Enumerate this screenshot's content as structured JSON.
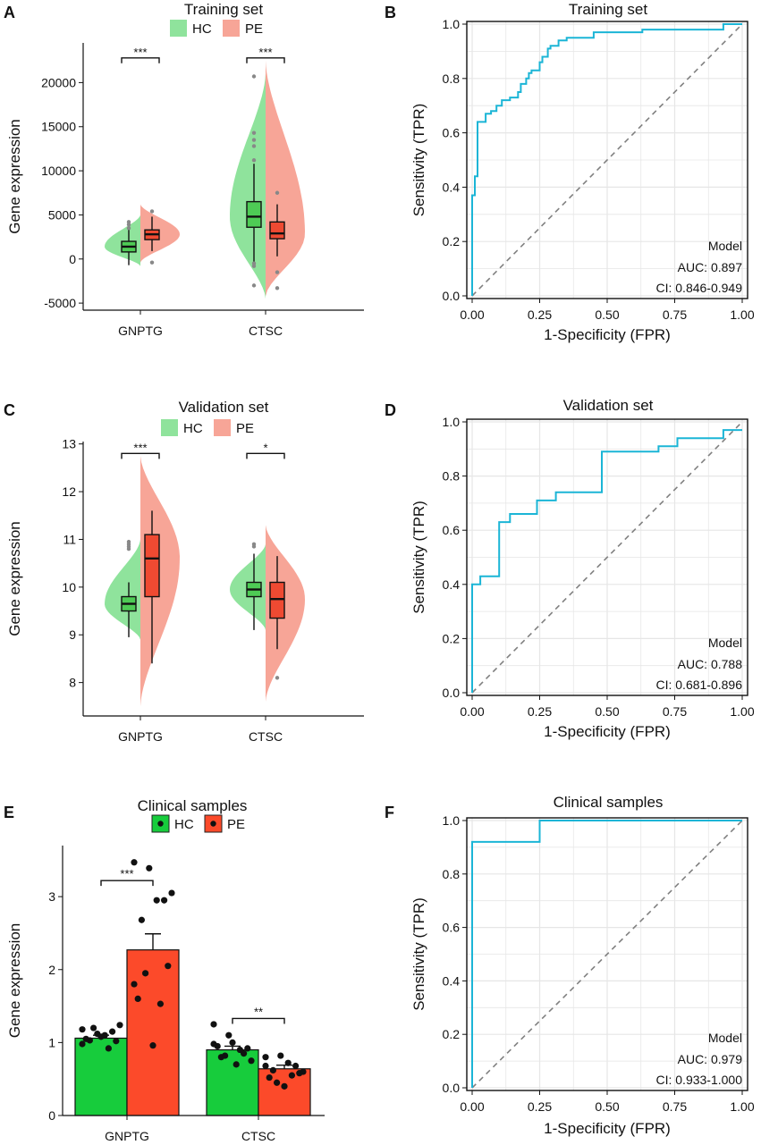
{
  "colors": {
    "hc_violin": "#8fe39c",
    "pe_violin": "#f7a597",
    "hc_box": "#4ecb55",
    "pe_box": "#ef4a32",
    "hc_bar": "#17cc3c",
    "pe_bar": "#fc4a2a",
    "roc": "#1bb5d6",
    "grid": "#e6e6e6",
    "diag": "#808080"
  },
  "chart_data": [
    {
      "panel": "A",
      "type": "violin",
      "title": "Training set",
      "ylabel": "Gene expression",
      "xlabel": "",
      "legend": [
        "HC",
        "PE"
      ],
      "ylim": [
        -5800,
        24500
      ],
      "yticks": [
        -5000,
        0,
        5000,
        10000,
        15000,
        20000
      ],
      "ytick_labels": [
        "-5000",
        "0",
        "5000",
        "10000",
        "15000",
        "20000"
      ],
      "categories": [
        "GNPTG",
        "CTSC"
      ],
      "groups": [
        {
          "category": "GNPTG",
          "significance": "***",
          "bracket_y": 22800,
          "hc": {
            "min": -700,
            "q1": 800,
            "median": 1400,
            "q3": 2000,
            "max": 3800,
            "vmin": -800,
            "vmax": 5000,
            "outliers": [
              3900,
              4200,
              3500
            ]
          },
          "pe": {
            "min": 900,
            "q1": 2200,
            "median": 2800,
            "q3": 3300,
            "max": 4800,
            "vmin": -400,
            "vmax": 6200,
            "outliers": [
              5400,
              -400
            ]
          }
        },
        {
          "category": "CTSC",
          "significance": "***",
          "bracket_y": 22800,
          "hc": {
            "min": -500,
            "q1": 3600,
            "median": 4800,
            "q3": 6500,
            "max": 10800,
            "vmin": -4500,
            "vmax": 21000,
            "outliers": [
              20700,
              14300,
              13500,
              12800,
              11200,
              -800,
              -3000,
              -500
            ]
          },
          "pe": {
            "min": 300,
            "q1": 2300,
            "median": 2900,
            "q3": 4200,
            "max": 6200,
            "vmin": -4200,
            "vmax": 22500,
            "outliers": [
              7500,
              -1500,
              -3300
            ]
          }
        }
      ]
    },
    {
      "panel": "B",
      "type": "roc",
      "title": "Training set",
      "xlabel": "1-Specificity (FPR)",
      "ylabel": "Sensitivity (TPR)",
      "xticks": [
        "0.00",
        "0.25",
        "0.50",
        "0.75",
        "1.00"
      ],
      "yticks": [
        "0.0",
        "0.2",
        "0.4",
        "0.6",
        "0.8",
        "1.0"
      ],
      "legend_title": "Model",
      "auc_text": "AUC: 0.897",
      "ci_text": "CI: 0.846-0.949",
      "points": [
        [
          0,
          0
        ],
        [
          0,
          0.37
        ],
        [
          0.01,
          0.37
        ],
        [
          0.01,
          0.44
        ],
        [
          0.02,
          0.44
        ],
        [
          0.02,
          0.64
        ],
        [
          0.05,
          0.64
        ],
        [
          0.05,
          0.67
        ],
        [
          0.07,
          0.67
        ],
        [
          0.07,
          0.68
        ],
        [
          0.09,
          0.68
        ],
        [
          0.09,
          0.7
        ],
        [
          0.11,
          0.7
        ],
        [
          0.11,
          0.72
        ],
        [
          0.14,
          0.72
        ],
        [
          0.14,
          0.73
        ],
        [
          0.17,
          0.73
        ],
        [
          0.17,
          0.75
        ],
        [
          0.18,
          0.75
        ],
        [
          0.18,
          0.78
        ],
        [
          0.2,
          0.78
        ],
        [
          0.2,
          0.8
        ],
        [
          0.21,
          0.8
        ],
        [
          0.21,
          0.82
        ],
        [
          0.22,
          0.82
        ],
        [
          0.22,
          0.83
        ],
        [
          0.25,
          0.83
        ],
        [
          0.25,
          0.86
        ],
        [
          0.26,
          0.86
        ],
        [
          0.26,
          0.88
        ],
        [
          0.28,
          0.88
        ],
        [
          0.28,
          0.91
        ],
        [
          0.29,
          0.91
        ],
        [
          0.29,
          0.92
        ],
        [
          0.32,
          0.92
        ],
        [
          0.32,
          0.94
        ],
        [
          0.35,
          0.94
        ],
        [
          0.35,
          0.95
        ],
        [
          0.45,
          0.95
        ],
        [
          0.45,
          0.97
        ],
        [
          0.63,
          0.97
        ],
        [
          0.63,
          0.98
        ],
        [
          0.93,
          0.98
        ],
        [
          0.93,
          1.0
        ],
        [
          1.0,
          1.0
        ]
      ]
    },
    {
      "panel": "C",
      "type": "violin",
      "title": "Validation set",
      "ylabel": "Gene expression",
      "xlabel": "",
      "legend": [
        "HC",
        "PE"
      ],
      "ylim": [
        7.3,
        13.05
      ],
      "yticks": [
        8,
        9,
        10,
        11,
        12,
        13
      ],
      "ytick_labels": [
        "8",
        "9",
        "10",
        "11",
        "12",
        "13"
      ],
      "categories": [
        "GNPTG",
        "CTSC"
      ],
      "groups": [
        {
          "category": "GNPTG",
          "significance": "***",
          "bracket_y": 12.8,
          "hc": {
            "min": 8.95,
            "q1": 9.5,
            "median": 9.65,
            "q3": 9.8,
            "max": 10.1,
            "vmin": 8.9,
            "vmax": 11.0,
            "outliers": [
              10.9,
              10.95,
              10.85,
              10.8
            ]
          },
          "pe": {
            "min": 8.4,
            "q1": 9.8,
            "median": 10.6,
            "q3": 11.1,
            "max": 11.6,
            "vmin": 7.5,
            "vmax": 12.75,
            "outliers": []
          }
        },
        {
          "category": "CTSC",
          "significance": "*",
          "bracket_y": 12.8,
          "hc": {
            "min": 9.1,
            "q1": 9.8,
            "median": 9.95,
            "q3": 10.1,
            "max": 10.7,
            "vmin": 9.1,
            "vmax": 10.9,
            "outliers": [
              10.85,
              10.9
            ]
          },
          "pe": {
            "min": 8.7,
            "q1": 9.35,
            "median": 9.75,
            "q3": 10.1,
            "max": 10.65,
            "vmin": 7.6,
            "vmax": 11.3,
            "outliers": [
              8.1
            ]
          }
        }
      ]
    },
    {
      "panel": "D",
      "type": "roc",
      "title": "Validation set",
      "xlabel": "1-Specificity (FPR)",
      "ylabel": "Sensitivity (TPR)",
      "xticks": [
        "0.00",
        "0.25",
        "0.50",
        "0.75",
        "1.00"
      ],
      "yticks": [
        "0.0",
        "0.2",
        "0.4",
        "0.6",
        "0.8",
        "1.0"
      ],
      "legend_title": "Model",
      "auc_text": "AUC: 0.788",
      "ci_text": "CI: 0.681-0.896",
      "points": [
        [
          0,
          0
        ],
        [
          0,
          0.4
        ],
        [
          0.03,
          0.4
        ],
        [
          0.03,
          0.43
        ],
        [
          0.1,
          0.43
        ],
        [
          0.1,
          0.63
        ],
        [
          0.14,
          0.63
        ],
        [
          0.14,
          0.66
        ],
        [
          0.24,
          0.66
        ],
        [
          0.24,
          0.71
        ],
        [
          0.31,
          0.71
        ],
        [
          0.31,
          0.74
        ],
        [
          0.48,
          0.74
        ],
        [
          0.48,
          0.89
        ],
        [
          0.69,
          0.89
        ],
        [
          0.69,
          0.91
        ],
        [
          0.76,
          0.91
        ],
        [
          0.76,
          0.94
        ],
        [
          0.93,
          0.94
        ],
        [
          0.93,
          0.97
        ],
        [
          1.0,
          0.97
        ]
      ]
    },
    {
      "panel": "E",
      "type": "bar",
      "title": "Clinical samples",
      "ylabel": "Gene expression",
      "xlabel": "",
      "legend": [
        "HC",
        "PE"
      ],
      "ylim": [
        0,
        3.7
      ],
      "yticks": [
        0,
        1,
        2,
        3
      ],
      "ytick_labels": [
        "0",
        "1",
        "2",
        "3"
      ],
      "categories": [
        "GNPTG",
        "CTSC"
      ],
      "series": [
        {
          "name": "HC",
          "values": [
            1.06,
            0.9
          ],
          "errors": [
            0.04,
            0.05
          ]
        },
        {
          "name": "PE",
          "values": [
            2.27,
            0.64
          ],
          "errors": [
            0.22,
            0.05
          ]
        }
      ],
      "points": {
        "HC": [
          [
            1.18,
            1.12,
            1.15,
            1.05,
            1.08,
            1.02,
            1.03,
            1.1,
            1.24,
            1.2,
            0.92,
            0.98
          ],
          [
            1.25,
            1.1,
            0.85,
            0.95,
            1.0,
            0.92,
            0.8,
            0.7,
            0.75,
            0.82,
            0.9,
            0.98
          ]
        ],
        "PE": [
          [
            3.47,
            3.39,
            2.95,
            1.6,
            0.96,
            2.05,
            2.68,
            2.95,
            3.05,
            1.95,
            1.53,
            1.8
          ],
          [
            0.8,
            0.82,
            0.68,
            0.52,
            0.4,
            0.58,
            0.62,
            0.72,
            0.6,
            0.45,
            0.55,
            0.68
          ]
        ]
      },
      "significance": [
        "***",
        "**"
      ]
    },
    {
      "panel": "F",
      "type": "roc",
      "title": "Clinical samples",
      "xlabel": "1-Specificity (FPR)",
      "ylabel": "Sensitivity (TPR)",
      "xticks": [
        "0.00",
        "0.25",
        "0.50",
        "0.75",
        "1.00"
      ],
      "yticks": [
        "0.0",
        "0.2",
        "0.4",
        "0.6",
        "0.8",
        "1.0"
      ],
      "legend_title": "Model",
      "auc_text": "AUC: 0.979",
      "ci_text": "CI: 0.933-1.000",
      "points": [
        [
          0,
          0
        ],
        [
          0,
          0.92
        ],
        [
          0.25,
          0.92
        ],
        [
          0.25,
          1.0
        ],
        [
          1.0,
          1.0
        ]
      ]
    }
  ]
}
